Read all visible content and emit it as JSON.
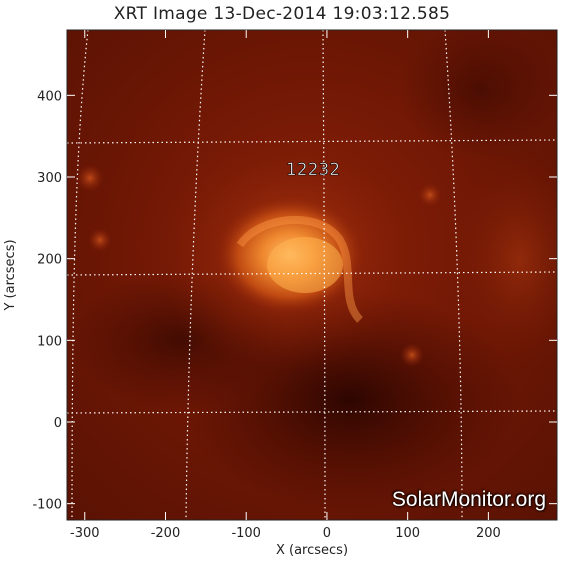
{
  "title": "XRT Image 13-Dec-2014 19:03:12.585",
  "region_label": "12232",
  "watermark": "SolarMonitor.org",
  "axes": {
    "xlabel": "X (arcsecs)",
    "ylabel": "Y (arcsecs)",
    "xlim": [
      -322,
      285
    ],
    "ylim": [
      -120,
      480
    ],
    "xticks": [
      -300,
      -200,
      -100,
      0,
      100,
      200
    ],
    "yticks": [
      -100,
      0,
      100,
      200,
      300,
      400
    ]
  },
  "colors": {
    "background_dark": "#3a0800",
    "background_mid": "#7a1a05",
    "active_region_core": "#ffb055",
    "grid": "#ffffff"
  }
}
